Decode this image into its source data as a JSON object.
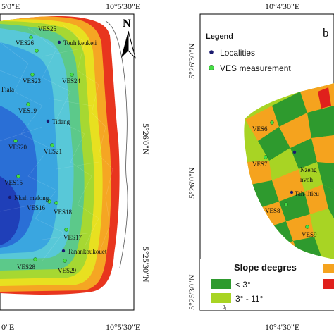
{
  "left_map": {
    "top_ticks": [
      "5'0\"E",
      "10°5'30\"E"
    ],
    "bottom_ticks": [
      "0\"E",
      "10°5'30\"E"
    ],
    "right_ticks": [
      "5°26'0\"N",
      "5°25'30\"N"
    ],
    "north_label": "N",
    "ves_points": [
      {
        "label": "VES25"
      },
      {
        "label": "VES26"
      },
      {
        "label": "VES23"
      },
      {
        "label": "VES24"
      },
      {
        "label": "VES19"
      },
      {
        "label": "VES20"
      },
      {
        "label": "VES21"
      },
      {
        "label": "VES15"
      },
      {
        "label": "VES16"
      },
      {
        "label": "VES18"
      },
      {
        "label": "VES17"
      },
      {
        "label": "VES28"
      },
      {
        "label": "VES29"
      }
    ],
    "localities": [
      {
        "label": "Touh keuketi"
      },
      {
        "label": "Fiala"
      },
      {
        "label": "Tidang"
      },
      {
        "label": "Nkah mefong"
      },
      {
        "label": "Tanankoukouet"
      }
    ]
  },
  "right_map": {
    "top_ticks": [
      "10°4'30\"E"
    ],
    "bottom_ticks": [
      "10°4'30\"E"
    ],
    "left_ticks": [
      "5°26'30\"N",
      "5°26'0\"N",
      "5°25'30\"N"
    ],
    "panel_letter": "b",
    "legend": {
      "title": "Legend",
      "items": [
        "Localities",
        "VES measurement"
      ],
      "locality_color": "#1a1a6e",
      "ves_color": "#44dd44"
    },
    "ves_points": [
      {
        "label": "VES6"
      },
      {
        "label": "VES7"
      },
      {
        "label": "VES8"
      },
      {
        "label": "VES9"
      }
    ],
    "localities": [
      {
        "label": "Nzeng"
      },
      {
        "label": "nvoh"
      },
      {
        "label": "Tah-litieu"
      }
    ],
    "slope_legend": {
      "title": "Slope deegres",
      "classes": [
        {
          "label": "< 3°",
          "color": "#2e9a2e"
        },
        {
          "label": "3° - 11°",
          "color": "#a8d424"
        }
      ],
      "extra_colors": [
        "#f5a31e",
        "#e0201c"
      ]
    },
    "scale_start": "0"
  }
}
